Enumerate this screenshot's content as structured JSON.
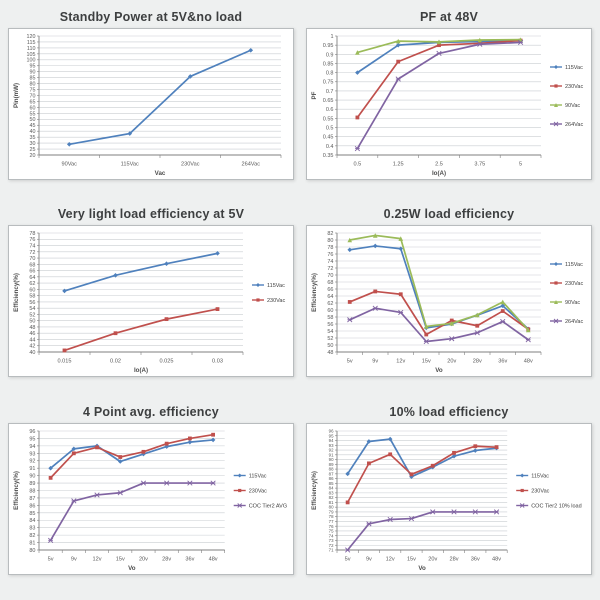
{
  "page": {
    "background": "#eef0f0",
    "panel_border": "#b8bcbe"
  },
  "colors": {
    "blue": "#4f81bd",
    "red": "#c0504d",
    "green": "#9bbb59",
    "purple": "#8064a2",
    "grid": "#c9cdd1",
    "axis": "#7f7f7f",
    "tick_text": "#595959"
  },
  "chart_data": [
    {
      "type": "line",
      "title": "Standby Power at 5V&no load",
      "xlabel": "Vac",
      "ylabel": "Pin(mW)",
      "ylim": [
        20,
        120
      ],
      "ystep": 5,
      "grid": true,
      "legend_position": "none",
      "categories": [
        "90Vac",
        "115Vac",
        "230Vac",
        "264Vac"
      ],
      "series": [
        {
          "name": "",
          "color": "#4f81bd",
          "marker": "diamond",
          "values": [
            29,
            38,
            86,
            108
          ]
        }
      ]
    },
    {
      "type": "line",
      "title": "PF at 48V",
      "xlabel": "Io(A)",
      "ylabel": "PF",
      "ylim": [
        0.35,
        1.0
      ],
      "ystep": 0.05,
      "grid": true,
      "legend_position": "right",
      "categories": [
        "0.5",
        "1.25",
        "2.5",
        "3.75",
        "5"
      ],
      "series": [
        {
          "name": "115Vac",
          "color": "#4f81bd",
          "marker": "diamond",
          "values": [
            0.8,
            0.95,
            0.965,
            0.97,
            0.975
          ]
        },
        {
          "name": "230Vac",
          "color": "#c0504d",
          "marker": "square",
          "values": [
            0.555,
            0.86,
            0.95,
            0.96,
            0.975
          ]
        },
        {
          "name": "90Vac",
          "color": "#9bbb59",
          "marker": "triangle",
          "values": [
            0.91,
            0.972,
            0.968,
            0.978,
            0.98
          ]
        },
        {
          "name": "264Vac",
          "color": "#8064a2",
          "marker": "x",
          "values": [
            0.385,
            0.765,
            0.905,
            0.955,
            0.965
          ]
        }
      ]
    },
    {
      "type": "line",
      "title": "Very light load efficiency at 5V",
      "xlabel": "Io(A)",
      "ylabel": "Efficiency(%)",
      "ylim": [
        40,
        78
      ],
      "ystep": 2,
      "grid": true,
      "legend_position": "right",
      "categories": [
        "0.015",
        "0.02",
        "0.025",
        "0.03"
      ],
      "series": [
        {
          "name": "115Vac",
          "color": "#4f81bd",
          "marker": "diamond",
          "values": [
            59.5,
            64.5,
            68.2,
            71.5
          ]
        },
        {
          "name": "230Vac",
          "color": "#c0504d",
          "marker": "square",
          "values": [
            40.5,
            46.0,
            50.5,
            53.7
          ]
        }
      ]
    },
    {
      "type": "line",
      "title": "0.25W load efficiency",
      "xlabel": "Vo",
      "ylabel": "Efficiency(%)",
      "ylim": [
        48,
        82
      ],
      "ystep": 2,
      "grid": true,
      "legend_position": "right",
      "categories": [
        "5v",
        "9v",
        "12v",
        "15v",
        "20v",
        "28v",
        "36v",
        "48v"
      ],
      "series": [
        {
          "name": "115Vac",
          "color": "#4f81bd",
          "marker": "diamond",
          "values": [
            77.2,
            78.3,
            77.5,
            54.9,
            56.0,
            58.5,
            61.2,
            54.6
          ]
        },
        {
          "name": "230Vac",
          "color": "#c0504d",
          "marker": "square",
          "values": [
            62.3,
            65.3,
            64.5,
            53.0,
            57.0,
            55.5,
            59.7,
            54.5
          ]
        },
        {
          "name": "90Vac",
          "color": "#9bbb59",
          "marker": "triangle",
          "values": [
            80.0,
            81.3,
            80.4,
            55.3,
            56.2,
            58.6,
            62.3,
            54.3
          ]
        },
        {
          "name": "264Vac",
          "color": "#8064a2",
          "marker": "x",
          "values": [
            57.2,
            60.5,
            59.3,
            51.0,
            51.8,
            53.5,
            56.7,
            51.5
          ]
        }
      ]
    },
    {
      "type": "line",
      "title": "4 Point avg. efficiency",
      "xlabel": "Vo",
      "ylabel": "Efficiency(%)",
      "ylim": [
        80,
        96
      ],
      "ystep": 1,
      "grid": true,
      "legend_position": "right",
      "categories": [
        "5v",
        "9v",
        "12v",
        "15v",
        "20v",
        "28v",
        "36v",
        "48v"
      ],
      "series": [
        {
          "name": "115Vac",
          "color": "#4f81bd",
          "marker": "diamond",
          "values": [
            91.0,
            93.6,
            94.0,
            91.9,
            92.9,
            93.9,
            94.5,
            94.8
          ]
        },
        {
          "name": "230Vac",
          "color": "#c0504d",
          "marker": "square",
          "values": [
            89.7,
            93.0,
            93.8,
            92.5,
            93.2,
            94.3,
            95.0,
            95.5
          ]
        },
        {
          "name": "COC Tier2 AVG",
          "color": "#8064a2",
          "marker": "x",
          "values": [
            81.3,
            86.6,
            87.4,
            87.7,
            89.0,
            89.0,
            89.0,
            89.0
          ]
        }
      ]
    },
    {
      "type": "line",
      "title": "10% load efficiency",
      "xlabel": "Vo",
      "ylabel": "Efficiency(%)",
      "ylim": [
        71,
        96
      ],
      "ystep": 1,
      "grid": true,
      "legend_position": "right",
      "categories": [
        "5v",
        "9v",
        "12v",
        "15v",
        "20v",
        "28v",
        "36v",
        "48v"
      ],
      "series": [
        {
          "name": "115Vac",
          "color": "#4f81bd",
          "marker": "diamond",
          "values": [
            87.0,
            93.8,
            94.3,
            86.4,
            88.4,
            90.7,
            91.9,
            92.4
          ]
        },
        {
          "name": "230Vac",
          "color": "#c0504d",
          "marker": "square",
          "values": [
            81.0,
            89.2,
            91.1,
            86.9,
            88.7,
            91.4,
            92.8,
            92.6
          ]
        },
        {
          "name": "COC Tier2 10% load",
          "color": "#8064a2",
          "marker": "x",
          "values": [
            71.0,
            76.5,
            77.4,
            77.6,
            79.0,
            79.0,
            79.0,
            79.0
          ]
        }
      ]
    }
  ]
}
